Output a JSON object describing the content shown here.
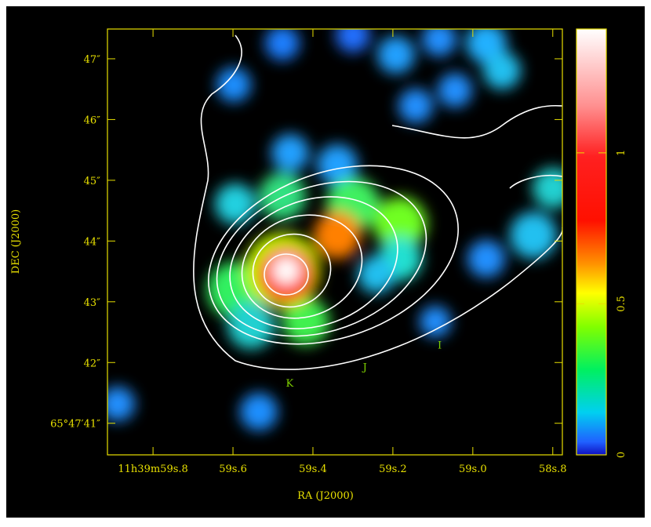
{
  "chart_data": {
    "type": "image-map",
    "xlabel": "RA (J2000)",
    "ylabel": "DEC (J2000)",
    "xlim": [
      59.914,
      58.776
    ],
    "xticks": [
      {
        "value": 59.8,
        "label": "11h39m59s.8"
      },
      {
        "value": 59.6,
        "label": "59s.6"
      },
      {
        "value": 59.4,
        "label": "59s.4"
      },
      {
        "value": 59.2,
        "label": "59s.2"
      },
      {
        "value": 59.0,
        "label": "59s.0"
      },
      {
        "value": 58.8,
        "label": "58s.8"
      }
    ],
    "ylim": [
      40.48,
      47.49
    ],
    "yticks": [
      {
        "value": 41,
        "label": "65°47′41″"
      },
      {
        "value": 42,
        "label": "42″"
      },
      {
        "value": 43,
        "label": "43″"
      },
      {
        "value": 44,
        "label": "44″"
      },
      {
        "value": 45,
        "label": "45″"
      },
      {
        "value": 46,
        "label": "46″"
      },
      {
        "value": 47,
        "label": "47″"
      }
    ],
    "colorbar": {
      "lim": [
        0,
        1.41
      ],
      "ticks": [
        0,
        0.5,
        1
      ]
    },
    "annotations": [
      {
        "text": "K",
        "x": 59.458,
        "y": 41.6
      },
      {
        "text": "J",
        "x": 59.27,
        "y": 41.87
      },
      {
        "text": "I",
        "x": 59.083,
        "y": 42.23
      }
    ],
    "axis_color": "#e8e000",
    "annotation_color": "#7fd000"
  }
}
